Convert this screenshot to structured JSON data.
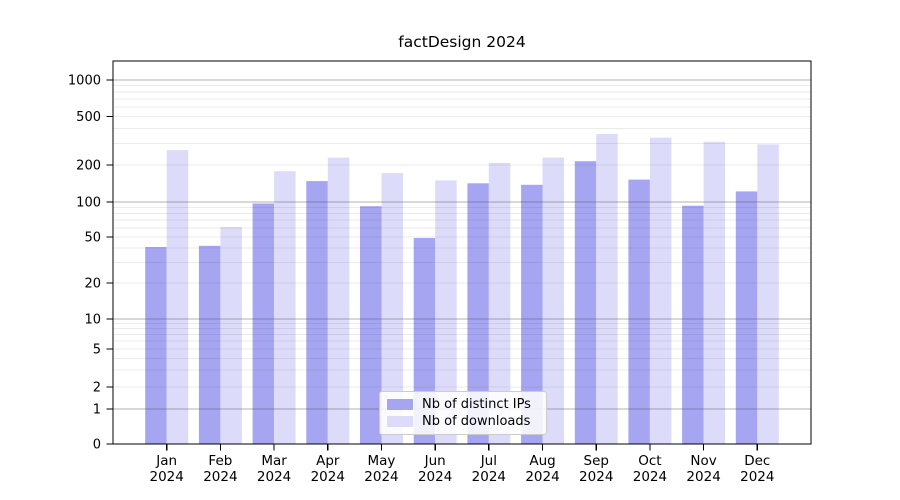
{
  "title": "factDesign 2024",
  "chart_data": {
    "type": "bar",
    "title": "factDesign 2024",
    "categories": [
      "Jan 2024",
      "Feb 2024",
      "Mar 2024",
      "Apr 2024",
      "May 2024",
      "Jun 2024",
      "Jul 2024",
      "Aug 2024",
      "Sep 2024",
      "Oct 2024",
      "Nov 2024",
      "Dec 2024"
    ],
    "series": [
      {
        "name": "Nb of distinct IPs",
        "color": "#a5a5f2",
        "values": [
          41,
          42,
          97,
          148,
          92,
          49,
          142,
          138,
          215,
          152,
          93,
          122
        ]
      },
      {
        "name": "Nb of downloads",
        "color": "#dcdcfa",
        "values": [
          265,
          61,
          178,
          230,
          172,
          150,
          208,
          230,
          360,
          335,
          310,
          295
        ]
      }
    ],
    "yscale": "symlog",
    "y_ticks": [
      0,
      1,
      2,
      5,
      10,
      20,
      50,
      100,
      200,
      500,
      1000
    ],
    "ylim": [
      0,
      1400
    ],
    "xlabel": "",
    "ylabel": "",
    "grid": true,
    "legend_position": "lower center",
    "colors": {
      "axis": "#000000",
      "major_grid": "#b0b0b0",
      "minor_grid": "#e8e8e8",
      "background": "#ffffff"
    }
  }
}
